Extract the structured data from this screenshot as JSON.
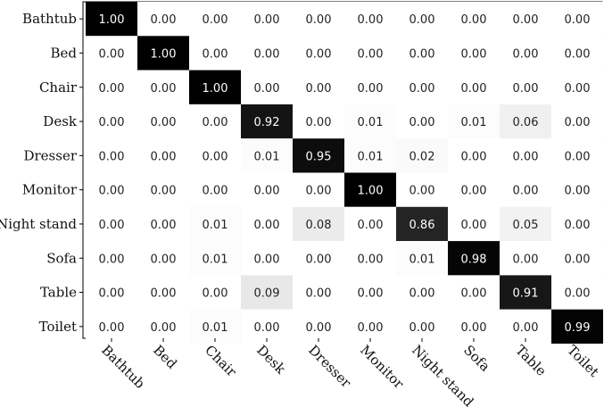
{
  "chart_data": {
    "type": "heatmap",
    "title": "",
    "xlabel": "",
    "ylabel": "",
    "rows": [
      "Bathtub",
      "Bed",
      "Chair",
      "Desk",
      "Dresser",
      "Monitor",
      "Night stand",
      "Sofa",
      "Table",
      "Toilet"
    ],
    "columns": [
      "Bathtub",
      "Bed",
      "Chair",
      "Desk",
      "Dresser",
      "Monitor",
      "Night stand",
      "Sofa",
      "Table",
      "Toilet"
    ],
    "values": [
      [
        1.0,
        0.0,
        0.0,
        0.0,
        0.0,
        0.0,
        0.0,
        0.0,
        0.0,
        0.0
      ],
      [
        0.0,
        1.0,
        0.0,
        0.0,
        0.0,
        0.0,
        0.0,
        0.0,
        0.0,
        0.0
      ],
      [
        0.0,
        0.0,
        1.0,
        0.0,
        0.0,
        0.0,
        0.0,
        0.0,
        0.0,
        0.0
      ],
      [
        0.0,
        0.0,
        0.0,
        0.92,
        0.0,
        0.01,
        0.0,
        0.01,
        0.06,
        0.0
      ],
      [
        0.0,
        0.0,
        0.0,
        0.01,
        0.95,
        0.01,
        0.02,
        0.0,
        0.0,
        0.0
      ],
      [
        0.0,
        0.0,
        0.0,
        0.0,
        0.0,
        1.0,
        0.0,
        0.0,
        0.0,
        0.0
      ],
      [
        0.0,
        0.0,
        0.01,
        0.0,
        0.08,
        0.0,
        0.86,
        0.0,
        0.05,
        0.0
      ],
      [
        0.0,
        0.0,
        0.01,
        0.0,
        0.0,
        0.0,
        0.01,
        0.98,
        0.0,
        0.0
      ],
      [
        0.0,
        0.0,
        0.0,
        0.09,
        0.0,
        0.0,
        0.0,
        0.0,
        0.91,
        0.0
      ],
      [
        0.0,
        0.0,
        0.01,
        0.0,
        0.0,
        0.0,
        0.0,
        0.0,
        0.0,
        0.99
      ]
    ],
    "value_format": "0.00",
    "colorscale": {
      "low": "#ffffff",
      "high": "#000000"
    },
    "grid": false,
    "legend": "none"
  }
}
